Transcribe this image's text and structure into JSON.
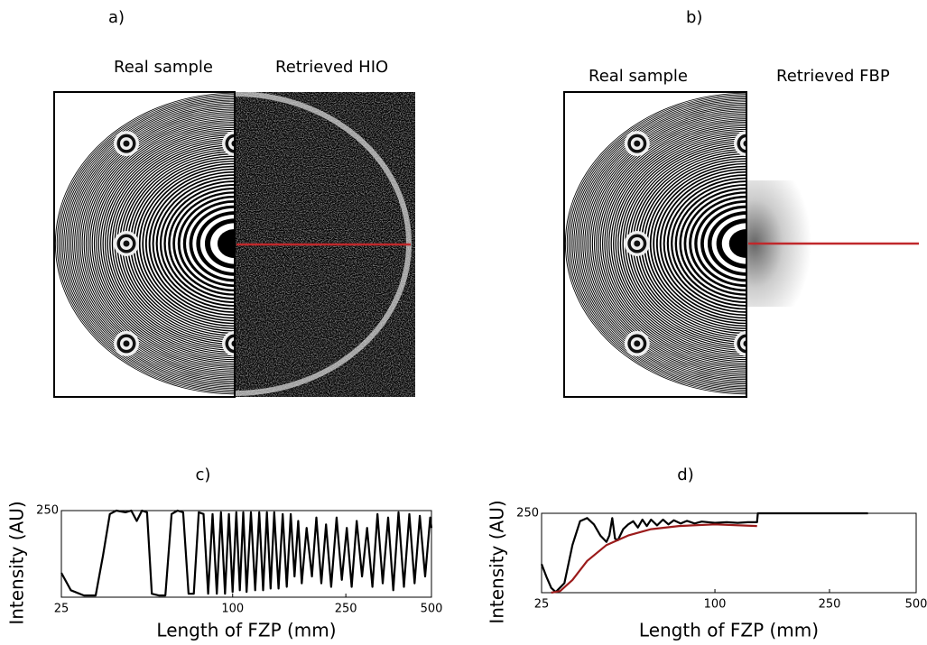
{
  "panels": [
    {
      "label": "a)",
      "left_title": "Real sample",
      "right_title": "Retrieved HIO"
    },
    {
      "label": "b)",
      "left_title": "Real sample",
      "right_title": "Retrieved FBP"
    }
  ],
  "chart_data": [
    {
      "type": "line",
      "title": "c)",
      "xlabel": "Length of FZP (mm)",
      "ylabel": "Intensity (AU)",
      "xlim": [
        25,
        500
      ],
      "ylim": [
        0,
        250
      ],
      "xticks": [
        25,
        100,
        250,
        500
      ],
      "yticks": [
        250
      ],
      "log_x": true,
      "series": [
        {
          "color": "#000000",
          "x": [
            25,
            27,
            30,
            33,
            35,
            37,
            39,
            42,
            44,
            46,
            48,
            50,
            52,
            55,
            58,
            61,
            64,
            67,
            70,
            73,
            76,
            79,
            82,
            85,
            88,
            91,
            94,
            97,
            100,
            103,
            106,
            109,
            112,
            116,
            120,
            124,
            128,
            132,
            136,
            140,
            145,
            150,
            155,
            160,
            165,
            170,
            175,
            182,
            190,
            197,
            205,
            213,
            222,
            232,
            242,
            252,
            262,
            273,
            285,
            297,
            310,
            323,
            337,
            352,
            367,
            383,
            400,
            418,
            436,
            455,
            475,
            495,
            500
          ],
          "values": [
            70,
            20,
            5,
            5,
            120,
            240,
            250,
            245,
            250,
            220,
            250,
            245,
            10,
            5,
            5,
            240,
            250,
            245,
            10,
            10,
            245,
            240,
            10,
            240,
            10,
            245,
            10,
            240,
            15,
            245,
            20,
            245,
            15,
            245,
            20,
            245,
            20,
            245,
            25,
            245,
            25,
            240,
            30,
            240,
            60,
            220,
            40,
            200,
            60,
            230,
            40,
            210,
            30,
            230,
            50,
            200,
            30,
            220,
            60,
            200,
            30,
            240,
            40,
            230,
            20,
            245,
            30,
            240,
            40,
            235,
            60,
            230,
            200
          ]
        }
      ]
    },
    {
      "type": "line",
      "title": "d)",
      "xlabel": "Length of FZP (mm)",
      "ylabel": "Intensity (AU)",
      "xlim": [
        25,
        500
      ],
      "ylim": [
        0,
        250
      ],
      "xticks": [
        25,
        100,
        250,
        500
      ],
      "yticks": [
        250
      ],
      "log_x": true,
      "series": [
        {
          "color": "#000000",
          "x": [
            25,
            26,
            27,
            28,
            30,
            32,
            34,
            36,
            38,
            40,
            42,
            43,
            44,
            45,
            46,
            48,
            50,
            52,
            54,
            56,
            58,
            60,
            63,
            66,
            69,
            72,
            76,
            80,
            85,
            90,
            100,
            110,
            120,
            130,
            140,
            141,
            200,
            340
          ],
          "values": [
            90,
            50,
            15,
            2,
            30,
            150,
            225,
            235,
            215,
            180,
            160,
            180,
            235,
            170,
            165,
            200,
            215,
            225,
            205,
            230,
            210,
            230,
            212,
            230,
            215,
            228,
            218,
            226,
            218,
            224,
            220,
            222,
            220,
            222,
            222,
            250,
            250,
            250
          ]
        },
        {
          "color": "#9b1b1b",
          "x": [
            27,
            29,
            32,
            36,
            42,
            50,
            60,
            75,
            100,
            140
          ],
          "values": [
            0,
            5,
            40,
            100,
            150,
            180,
            200,
            210,
            215,
            210
          ]
        }
      ]
    }
  ]
}
